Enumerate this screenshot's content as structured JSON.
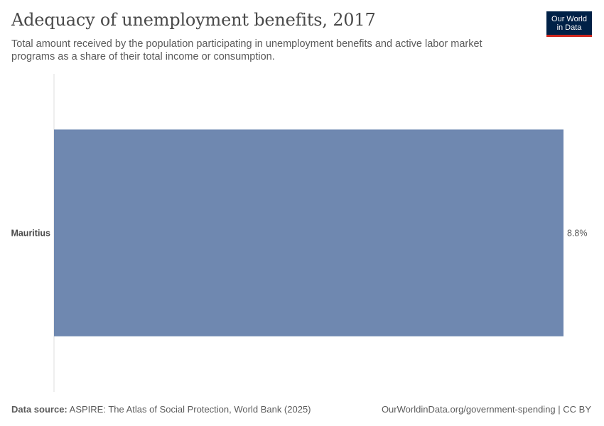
{
  "header": {
    "title": "Adequacy of unemployment benefits, 2017",
    "subtitle": "Total amount received by the population participating in unemployment benefits and active labor market programs as a share of their total income or consumption."
  },
  "logo": {
    "line1": "Our World",
    "line2": "in Data",
    "bg_color": "#002147",
    "accent_color": "#ce261e"
  },
  "footer": {
    "source_label": "Data source:",
    "source_text": "ASPIRE: The Atlas of Social Protection, World Bank (2025)",
    "url_text": "OurWorldinData.org/government-spending | CC BY"
  },
  "chart_data": {
    "type": "bar",
    "orientation": "horizontal",
    "categories": [
      "Mauritius"
    ],
    "values": [
      8.8
    ],
    "value_labels": [
      "8.8%"
    ],
    "bar_color": "#6f88b0",
    "xlim": [
      0,
      8.8
    ],
    "grid": false
  }
}
